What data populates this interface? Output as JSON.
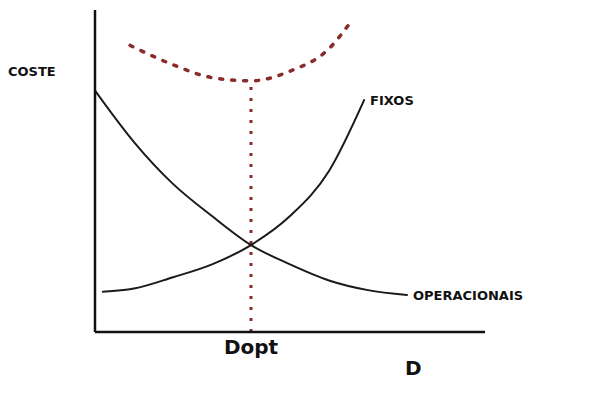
{
  "chart_data": {
    "type": "line",
    "x_label": "D",
    "y_label": "COSTE",
    "xlim": [
      0,
      10
    ],
    "ylim": [
      0,
      10
    ],
    "xticks": [
      {
        "value": 4,
        "label": "Dopt"
      }
    ],
    "tick_labels": "x",
    "grid": false,
    "series": [
      {
        "name": "FIXOS",
        "color": "#1a1a1a",
        "line_style": "solid",
        "x": [
          0.2,
          1,
          2,
          3,
          4,
          5,
          6,
          6.9
        ],
        "values": [
          1.25,
          1.35,
          1.7,
          2.1,
          2.7,
          3.6,
          5.0,
          7.2
        ]
      },
      {
        "name": "OPERACIONAIS",
        "color": "#1a1a1a",
        "line_style": "solid",
        "x": [
          0,
          1,
          2,
          3,
          4,
          5,
          6,
          7,
          8
        ],
        "values": [
          7.5,
          5.9,
          4.6,
          3.6,
          2.7,
          2.1,
          1.6,
          1.3,
          1.15
        ]
      },
      {
        "color": "#8b2a2a",
        "line_style": "dotted",
        "x": [
          0.9,
          2,
          3,
          4,
          5,
          6,
          6.6
        ],
        "values": [
          8.9,
          8.3,
          7.9,
          7.8,
          8.1,
          8.8,
          9.7
        ]
      }
    ]
  }
}
